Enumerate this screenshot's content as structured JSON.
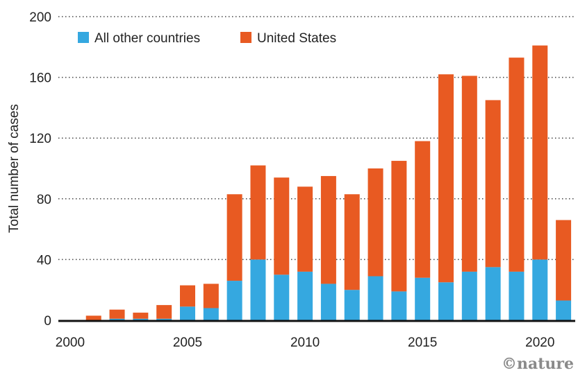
{
  "chart_data": {
    "type": "bar",
    "stacked": true,
    "ylabel": "Total number of cases",
    "ylim": [
      0,
      200
    ],
    "yticks": [
      "0",
      "40",
      "80",
      "120",
      "160",
      "200"
    ],
    "xticks": [
      "2000",
      "2005",
      "2010",
      "2015",
      "2020"
    ],
    "categories": [
      2001,
      2002,
      2003,
      2004,
      2005,
      2006,
      2007,
      2008,
      2009,
      2010,
      2011,
      2012,
      2013,
      2014,
      2015,
      2016,
      2017,
      2018,
      2019,
      2020,
      2021
    ],
    "series": [
      {
        "name": "All other countries",
        "color": "#35A8E0",
        "values": [
          0,
          1,
          1,
          1,
          9,
          8,
          26,
          40,
          30,
          32,
          24,
          20,
          29,
          19,
          28,
          25,
          32,
          35,
          32,
          40,
          13
        ]
      },
      {
        "name": "United States",
        "color": "#E85A22",
        "values": [
          3,
          6,
          4,
          9,
          14,
          16,
          57,
          62,
          64,
          56,
          71,
          63,
          71,
          86,
          90,
          137,
          129,
          110,
          141,
          141,
          53
        ]
      }
    ],
    "grid": "horizontal-dotted",
    "legend": "top-left"
  },
  "credit": "©nature"
}
